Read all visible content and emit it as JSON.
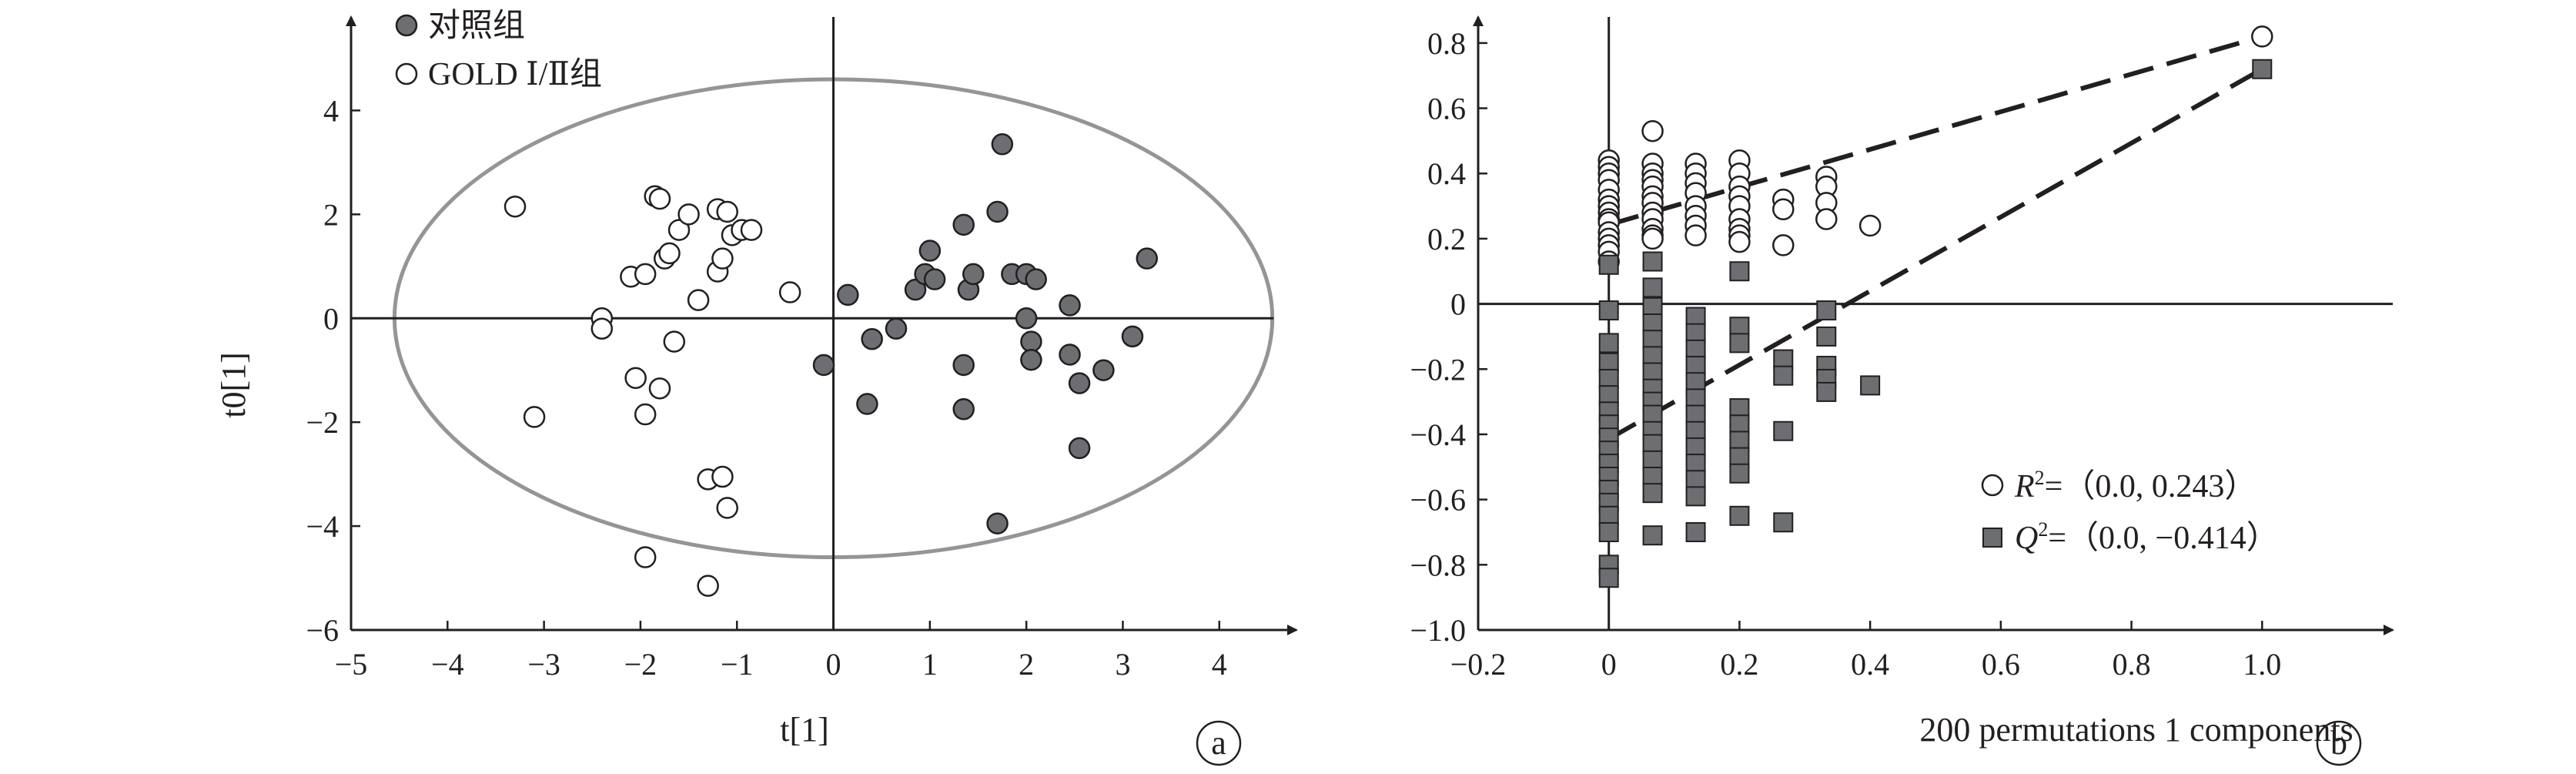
{
  "chart_data": [
    {
      "type": "scatter",
      "panel_label": "a",
      "xlabel": "t[1]",
      "ylabel": "t0[1]",
      "xlim": [
        -5,
        4.8
      ],
      "ylim": [
        -6,
        5.8
      ],
      "x_ticks": [
        -5,
        -4,
        -3,
        -2,
        -1,
        0,
        1,
        2,
        3,
        4
      ],
      "y_ticks": [
        -6,
        -4,
        -2,
        0,
        2,
        4
      ],
      "x_tick_labels": [
        "−5",
        "−4",
        "−3",
        "−2",
        "−1",
        "0",
        "1",
        "2",
        "3",
        "4"
      ],
      "y_tick_labels": [
        "−6",
        "−4",
        "−2",
        "0",
        "2",
        "4"
      ],
      "ellipse": {
        "cx": 0,
        "cy": 0,
        "rx": 4.55,
        "ry": 4.6
      },
      "legend_position": "top-left",
      "series": [
        {
          "name": "对照组",
          "marker": "filled-circle",
          "color": "#6d6e71",
          "points": [
            [
              0.15,
              0.45
            ],
            [
              -0.1,
              -0.9
            ],
            [
              0.35,
              -1.65
            ],
            [
              0.4,
              -0.4
            ],
            [
              0.65,
              -0.2
            ],
            [
              0.85,
              0.55
            ],
            [
              0.95,
              0.85
            ],
            [
              1.0,
              1.3
            ],
            [
              1.05,
              0.75
            ],
            [
              1.35,
              1.8
            ],
            [
              1.35,
              -0.9
            ],
            [
              1.35,
              -1.75
            ],
            [
              1.4,
              0.55
            ],
            [
              1.45,
              0.85
            ],
            [
              1.7,
              2.05
            ],
            [
              1.75,
              3.35
            ],
            [
              1.85,
              0.85
            ],
            [
              2.0,
              0.0
            ],
            [
              2.0,
              0.85
            ],
            [
              2.05,
              -0.45
            ],
            [
              2.05,
              -0.8
            ],
            [
              2.1,
              0.75
            ],
            [
              2.45,
              0.25
            ],
            [
              2.45,
              -0.7
            ],
            [
              2.55,
              -1.25
            ],
            [
              2.55,
              -2.5
            ],
            [
              2.8,
              -1.0
            ],
            [
              3.1,
              -0.35
            ],
            [
              3.25,
              1.15
            ],
            [
              1.7,
              -3.95
            ]
          ]
        },
        {
          "name": "GOLD Ⅰ/Ⅱ组",
          "marker": "open-circle",
          "color": "#ffffff",
          "points": [
            [
              -3.3,
              2.15
            ],
            [
              -3.1,
              -1.9
            ],
            [
              -2.4,
              0.0
            ],
            [
              -2.4,
              -0.2
            ],
            [
              -2.1,
              0.8
            ],
            [
              -2.05,
              -1.15
            ],
            [
              -1.95,
              0.85
            ],
            [
              -1.95,
              -1.85
            ],
            [
              -1.85,
              2.35
            ],
            [
              -1.8,
              2.3
            ],
            [
              -1.8,
              -1.35
            ],
            [
              -1.75,
              1.15
            ],
            [
              -1.7,
              1.25
            ],
            [
              -1.65,
              -0.45
            ],
            [
              -1.6,
              1.7
            ],
            [
              -1.5,
              2.0
            ],
            [
              -1.4,
              0.35
            ],
            [
              -1.3,
              -3.1
            ],
            [
              -1.2,
              2.1
            ],
            [
              -1.2,
              0.9
            ],
            [
              -1.15,
              1.15
            ],
            [
              -1.1,
              2.05
            ],
            [
              -1.05,
              1.6
            ],
            [
              -0.95,
              1.7
            ],
            [
              -0.85,
              1.7
            ],
            [
              -0.45,
              0.5
            ],
            [
              -1.15,
              -3.05
            ],
            [
              -1.1,
              -3.65
            ],
            [
              -1.95,
              -4.6
            ],
            [
              -1.3,
              -5.15
            ]
          ]
        }
      ]
    },
    {
      "type": "scatter",
      "panel_label": "b",
      "xlabel": "200 permutations 1 components",
      "ylabel": "",
      "xlim": [
        -0.2,
        1.2
      ],
      "ylim": [
        -1.0,
        0.88
      ],
      "x_ticks": [
        -0.2,
        0,
        0.2,
        0.4,
        0.6,
        0.8,
        1.0
      ],
      "y_ticks": [
        -1.0,
        -0.8,
        -0.6,
        -0.4,
        -0.2,
        0,
        0.2,
        0.4,
        0.6,
        0.8
      ],
      "x_tick_labels": [
        "−0.2",
        "0",
        "0.2",
        "0.4",
        "0.6",
        "0.8",
        "1.0"
      ],
      "y_tick_labels": [
        "−1.0",
        "−0.8",
        "−0.6",
        "−0.4",
        "−0.2",
        "0",
        "0.2",
        "0.4",
        "0.6",
        "0.8"
      ],
      "legend_position": "bottom-right",
      "legend": {
        "r2_prefix": "R",
        "r2_sup": "2",
        "r2_values": "=（0.0, 0.243）",
        "q2_prefix": "Q",
        "q2_sup": "2",
        "q2_values": "=（0.0, −0.414）"
      },
      "series": [
        {
          "name": "R2",
          "marker": "open-circle",
          "color": "#ffffff",
          "intercept_line": {
            "x0": 0.0,
            "y0": 0.243,
            "x1": 1.0,
            "y1": 0.82
          },
          "points": [
            [
              0,
              0.44
            ],
            [
              0,
              0.42
            ],
            [
              0,
              0.4
            ],
            [
              0,
              0.38
            ],
            [
              0,
              0.35
            ],
            [
              0,
              0.32
            ],
            [
              0,
              0.3
            ],
            [
              0,
              0.28
            ],
            [
              0,
              0.26
            ],
            [
              0,
              0.25
            ],
            [
              0,
              0.22
            ],
            [
              0,
              0.2
            ],
            [
              0,
              0.18
            ],
            [
              0,
              0.16
            ],
            [
              0,
              0.13
            ],
            [
              0.067,
              0.53
            ],
            [
              0.067,
              0.43
            ],
            [
              0.067,
              0.4
            ],
            [
              0.067,
              0.38
            ],
            [
              0.067,
              0.36
            ],
            [
              0.067,
              0.33
            ],
            [
              0.067,
              0.31
            ],
            [
              0.067,
              0.28
            ],
            [
              0.067,
              0.26
            ],
            [
              0.067,
              0.23
            ],
            [
              0.067,
              0.21
            ],
            [
              0.067,
              0.2
            ],
            [
              0.133,
              0.43
            ],
            [
              0.133,
              0.4
            ],
            [
              0.133,
              0.37
            ],
            [
              0.133,
              0.34
            ],
            [
              0.133,
              0.3
            ],
            [
              0.133,
              0.27
            ],
            [
              0.133,
              0.24
            ],
            [
              0.133,
              0.21
            ],
            [
              0.2,
              0.44
            ],
            [
              0.2,
              0.4
            ],
            [
              0.2,
              0.36
            ],
            [
              0.2,
              0.33
            ],
            [
              0.2,
              0.3
            ],
            [
              0.2,
              0.26
            ],
            [
              0.2,
              0.23
            ],
            [
              0.2,
              0.21
            ],
            [
              0.2,
              0.19
            ],
            [
              0.267,
              0.32
            ],
            [
              0.267,
              0.29
            ],
            [
              0.267,
              0.18
            ],
            [
              0.333,
              0.39
            ],
            [
              0.333,
              0.36
            ],
            [
              0.333,
              0.31
            ],
            [
              0.333,
              0.26
            ],
            [
              0.4,
              0.24
            ],
            [
              1.0,
              0.82
            ]
          ]
        },
        {
          "name": "Q2",
          "marker": "filled-square",
          "color": "#6d6e71",
          "intercept_line": {
            "x0": 0.0,
            "y0": -0.414,
            "x1": 1.0,
            "y1": 0.72
          },
          "points": [
            [
              0,
              0.12
            ],
            [
              0,
              -0.02
            ],
            [
              0,
              -0.12
            ],
            [
              0,
              -0.18
            ],
            [
              0,
              -0.23
            ],
            [
              0,
              -0.28
            ],
            [
              0,
              -0.33
            ],
            [
              0,
              -0.37
            ],
            [
              0,
              -0.41
            ],
            [
              0,
              -0.45
            ],
            [
              0,
              -0.49
            ],
            [
              0,
              -0.53
            ],
            [
              0,
              -0.57
            ],
            [
              0,
              -0.61
            ],
            [
              0,
              -0.65
            ],
            [
              0,
              -0.7
            ],
            [
              0,
              -0.8
            ],
            [
              0,
              -0.84
            ],
            [
              0.067,
              0.13
            ],
            [
              0.067,
              0.05
            ],
            [
              0.067,
              -0.01
            ],
            [
              0.067,
              -0.06
            ],
            [
              0.067,
              -0.11
            ],
            [
              0.067,
              -0.16
            ],
            [
              0.067,
              -0.21
            ],
            [
              0.067,
              -0.26
            ],
            [
              0.067,
              -0.3
            ],
            [
              0.067,
              -0.34
            ],
            [
              0.067,
              -0.39
            ],
            [
              0.067,
              -0.43
            ],
            [
              0.067,
              -0.48
            ],
            [
              0.067,
              -0.53
            ],
            [
              0.067,
              -0.58
            ],
            [
              0.067,
              -0.71
            ],
            [
              0.133,
              -0.04
            ],
            [
              0.133,
              -0.09
            ],
            [
              0.133,
              -0.14
            ],
            [
              0.133,
              -0.19
            ],
            [
              0.133,
              -0.24
            ],
            [
              0.133,
              -0.29
            ],
            [
              0.133,
              -0.34
            ],
            [
              0.133,
              -0.39
            ],
            [
              0.133,
              -0.44
            ],
            [
              0.133,
              -0.49
            ],
            [
              0.133,
              -0.54
            ],
            [
              0.133,
              -0.59
            ],
            [
              0.133,
              -0.7
            ],
            [
              0.2,
              0.1
            ],
            [
              0.2,
              -0.07
            ],
            [
              0.2,
              -0.12
            ],
            [
              0.2,
              -0.32
            ],
            [
              0.2,
              -0.37
            ],
            [
              0.2,
              -0.42
            ],
            [
              0.2,
              -0.47
            ],
            [
              0.2,
              -0.52
            ],
            [
              0.2,
              -0.65
            ],
            [
              0.267,
              -0.17
            ],
            [
              0.267,
              -0.22
            ],
            [
              0.267,
              -0.39
            ],
            [
              0.267,
              -0.67
            ],
            [
              0.333,
              -0.02
            ],
            [
              0.333,
              -0.1
            ],
            [
              0.333,
              -0.19
            ],
            [
              0.333,
              -0.23
            ],
            [
              0.333,
              -0.27
            ],
            [
              0.4,
              -0.25
            ],
            [
              1.0,
              0.72
            ]
          ]
        }
      ]
    }
  ]
}
